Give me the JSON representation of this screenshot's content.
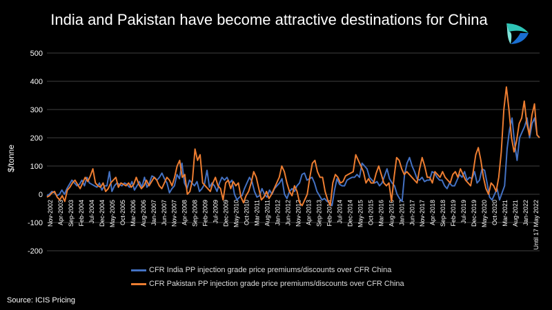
{
  "title": "India and Pakistan have become attractive destinations for China",
  "source": "Source: ICIS Pricing",
  "logo": {
    "icon": "icis-logo-icon",
    "colors": [
      "#2ec4b6",
      "#1a6fd1",
      "#7fe3d9"
    ]
  },
  "chart_data": {
    "type": "line",
    "ylabel": "$/tonne",
    "xlabel": "",
    "ylim": [
      -200,
      500
    ],
    "yticks": [
      -200,
      -100,
      0,
      100,
      200,
      300,
      400,
      500
    ],
    "grid": "horizontal",
    "legend": "bottom",
    "x_tick_labels": [
      "Nov-2002",
      "Apr-2003",
      "Sep-2003",
      "Feb-2004",
      "Jul-2004",
      "Dec-2004",
      "May-2005",
      "Oct-2005",
      "Mar-2006",
      "Aug-2006",
      "Jan-2007",
      "Jun-2007",
      "Nov-2007",
      "Apr-2008",
      "Sep-2008",
      "Feb-2009",
      "Jul-2009",
      "Dec-2009",
      "May-2010",
      "Oct-2010",
      "Mar-2011",
      "Aug-2011",
      "Jan-2012",
      "Jun-2012",
      "Nov-2012",
      "Apr-2013",
      "Sep-2013",
      "Feb-2014",
      "Jul-2014",
      "Dec-2014",
      "May-2015",
      "Oct-2015",
      "Mar-2016",
      "Aug-2016",
      "Jan-2017",
      "Jun-2017",
      "Nov-2017",
      "Apr-2018",
      "Sep-2018",
      "Feb-2019",
      "Jul-2019",
      "Dec-2019",
      "May-2020",
      "Oct-2020",
      "Mar-2021",
      "Aug-2021",
      "Jan-2022",
      "Until 17 May 2022"
    ],
    "series": [
      {
        "name": "CFR India PP injection grade price premiums/discounts over CFR China",
        "color": "#4472c4",
        "values": [
          -5,
          0,
          10,
          5,
          -5,
          0,
          15,
          0,
          20,
          35,
          50,
          40,
          30,
          35,
          50,
          30,
          60,
          40,
          35,
          30,
          25,
          40,
          15,
          30,
          30,
          80,
          10,
          30,
          40,
          35,
          30,
          40,
          35,
          25,
          45,
          15,
          30,
          45,
          25,
          60,
          25,
          40,
          65,
          60,
          50,
          60,
          75,
          55,
          40,
          5,
          20,
          30,
          70,
          55,
          110,
          40,
          20,
          50,
          40,
          30,
          45,
          10,
          20,
          35,
          85,
          25,
          40,
          30,
          10,
          40,
          60,
          50,
          60,
          40,
          50,
          0,
          -20,
          -10,
          -5,
          20,
          40,
          60,
          45,
          10,
          -10,
          -5,
          20,
          0,
          -10,
          15,
          0,
          20,
          30,
          40,
          55,
          0,
          -15,
          10,
          20,
          10,
          30,
          40,
          70,
          75,
          50,
          55,
          60,
          40,
          10,
          -5,
          -20,
          -15,
          -25,
          -30,
          -40,
          15,
          55,
          35,
          30,
          30,
          50,
          55,
          60,
          60,
          70,
          60,
          110,
          100,
          90,
          60,
          50,
          40,
          45,
          30,
          40,
          65,
          90,
          55,
          40,
          30,
          0,
          -15,
          -25,
          70,
          110,
          130,
          100,
          80,
          55,
          50,
          60,
          45,
          50,
          50,
          80,
          75,
          60,
          50,
          50,
          30,
          20,
          40,
          30,
          30,
          50,
          70,
          60,
          80,
          50,
          60,
          55,
          80,
          40,
          50,
          90,
          85,
          40,
          -10,
          -20,
          0,
          20,
          -20,
          5,
          30,
          160,
          230,
          270,
          180,
          120,
          200,
          220,
          240,
          270,
          200,
          250,
          270,
          210,
          200
        ]
      },
      {
        "name": "CFR Pakistan  PP injection grade price premiums/discounts over CFR China",
        "color": "#ed7d31",
        "values": [
          -10,
          -5,
          5,
          10,
          -10,
          -20,
          -5,
          -25,
          15,
          25,
          40,
          50,
          35,
          20,
          40,
          60,
          45,
          65,
          90,
          40,
          30,
          25,
          40,
          10,
          20,
          40,
          50,
          60,
          25,
          40,
          35,
          30,
          40,
          25,
          35,
          60,
          35,
          20,
          30,
          50,
          30,
          45,
          60,
          50,
          30,
          20,
          40,
          60,
          50,
          30,
          60,
          100,
          120,
          60,
          70,
          0,
          10,
          50,
          160,
          120,
          140,
          40,
          30,
          20,
          10,
          40,
          60,
          30,
          20,
          -20,
          40,
          50,
          20,
          45,
          30,
          40,
          -10,
          -30,
          -5,
          10,
          40,
          80,
          60,
          20,
          -20,
          -10,
          10,
          -15,
          0,
          20,
          40,
          60,
          100,
          80,
          40,
          10,
          -5,
          30,
          10,
          -30,
          -40,
          -20,
          0,
          60,
          110,
          120,
          80,
          60,
          60,
          10,
          -20,
          -40,
          40,
          70,
          60,
          40,
          45,
          65,
          70,
          75,
          80,
          140,
          120,
          100,
          80,
          40,
          55,
          40,
          40,
          75,
          100,
          70,
          40,
          30,
          40,
          -25,
          60,
          130,
          120,
          90,
          70,
          80,
          70,
          60,
          50,
          40,
          90,
          130,
          100,
          60,
          60,
          40,
          80,
          70,
          60,
          80,
          60,
          50,
          40,
          70,
          80,
          60,
          90,
          70,
          50,
          40,
          30,
          80,
          140,
          165,
          120,
          60,
          20,
          0,
          40,
          30,
          10,
          60,
          150,
          300,
          380,
          300,
          200,
          150,
          190,
          250,
          270,
          330,
          250,
          210,
          280,
          320,
          210,
          200
        ]
      }
    ]
  }
}
